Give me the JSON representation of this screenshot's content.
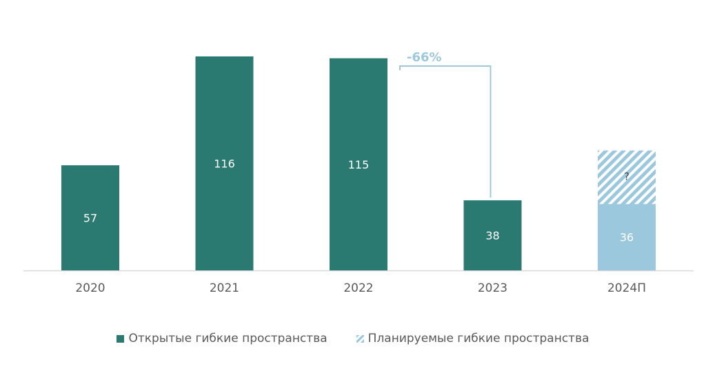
{
  "chart_data": {
    "type": "bar",
    "categories": [
      "2020",
      "2021",
      "2022",
      "2023",
      "2024П"
    ],
    "series": [
      {
        "name": "Открытые гибкие пространства",
        "values": [
          57,
          116,
          115,
          38,
          null
        ],
        "color": "#2b7a72"
      },
      {
        "name": "Планируемые гибкие пространства",
        "values": [
          null,
          null,
          null,
          null,
          36
        ],
        "color": "#9cc8de"
      }
    ],
    "data_labels": [
      "57",
      "116",
      "115",
      "38",
      "36"
    ],
    "uncertain_segment": {
      "category": "2024П",
      "label": "?",
      "value": 29
    },
    "annotation": {
      "text": "-66%",
      "from": "2022",
      "to": "2023",
      "color": "#9cc8de"
    },
    "ylim": [
      0,
      116
    ],
    "title": "",
    "xlabel": "",
    "ylabel": "",
    "grid": false,
    "legend_position": "bottom"
  }
}
